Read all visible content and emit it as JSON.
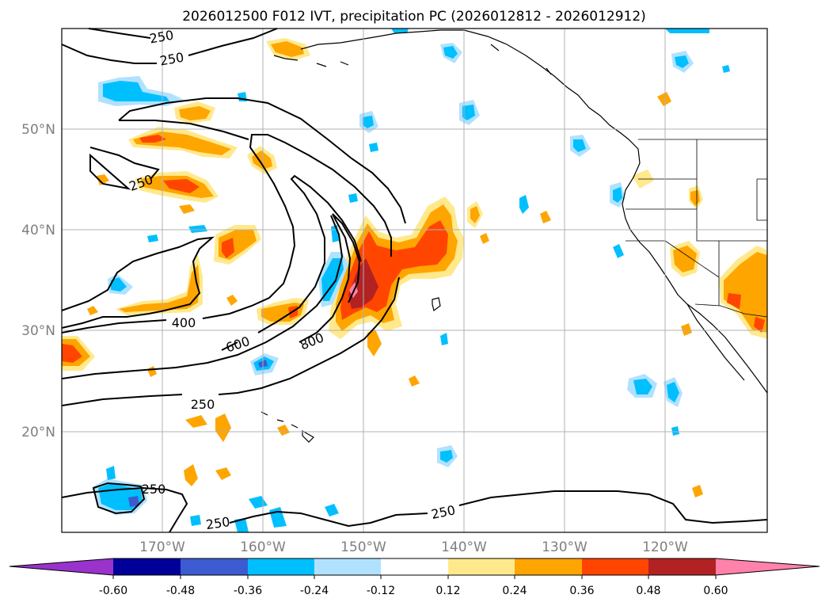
{
  "figure": {
    "title": "2026012500 F012 IVT, precipitation PC (2026012812 - 2026012912)"
  },
  "map": {
    "lat_labels": [
      "20°N",
      "30°N",
      "40°N",
      "50°N"
    ],
    "lon_labels": [
      "170°W",
      "160°W",
      "150°W",
      "140°W",
      "130°W",
      "120°W"
    ],
    "ivt_contour_labels": [
      "250",
      "250",
      "250",
      "400",
      "600",
      "800",
      "250",
      "250",
      "250",
      "250"
    ]
  },
  "colorbar": {
    "tick_labels": [
      "-0.60",
      "-0.48",
      "-0.36",
      "-0.24",
      "-0.12",
      "0.12",
      "0.24",
      "0.36",
      "0.48",
      "0.60"
    ],
    "colors": [
      "#9933cc",
      "#000099",
      "#3d5bd1",
      "#00bfff",
      "#b0e2ff",
      "#ffffff",
      "#ffe98c",
      "#ffa500",
      "#ff4500",
      "#b22222",
      "#ff82ab"
    ]
  },
  "colors": {
    "neg_strong": "#3d5bd1",
    "neg_mid": "#00bfff",
    "neg_weak": "#b0e2ff",
    "pos_weak": "#ffe98c",
    "pos_mid": "#ffa500",
    "pos_high": "#ff4500",
    "pos_very_high": "#b22222",
    "pos_extreme": "#ff82ab",
    "grid": "#b0b0b0"
  }
}
